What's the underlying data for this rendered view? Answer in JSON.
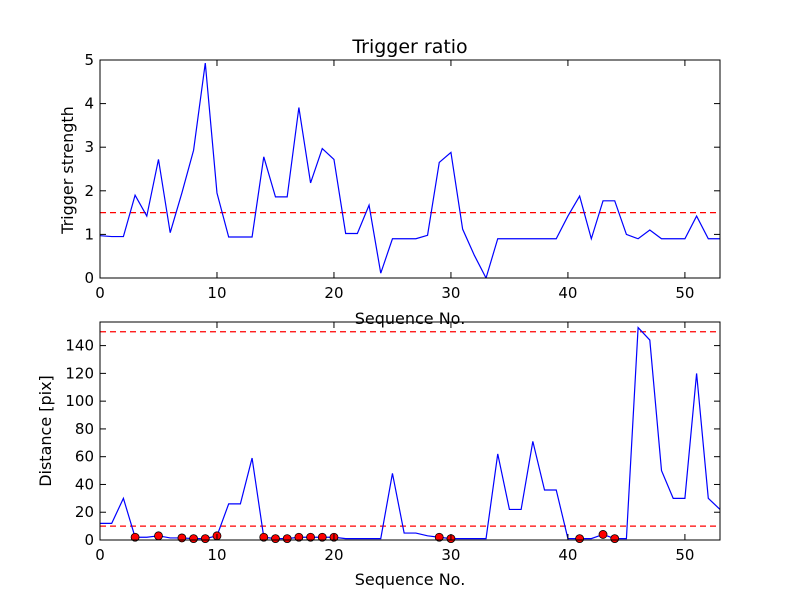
{
  "chart_data": [
    {
      "type": "line",
      "title": "Trigger ratio",
      "xlabel": "Sequence No.",
      "ylabel": "Trigger strength",
      "xlim": [
        0,
        53
      ],
      "ylim": [
        0,
        5
      ],
      "xticks": [
        0,
        10,
        20,
        30,
        40,
        50
      ],
      "yticks": [
        0,
        1,
        2,
        3,
        4,
        5
      ],
      "grid": false,
      "series": [
        {
          "color": "#0000ff",
          "x": [
            0,
            1,
            2,
            3,
            4,
            5,
            6,
            7,
            8,
            9,
            10,
            11,
            12,
            13,
            14,
            15,
            16,
            17,
            18,
            19,
            20,
            21,
            22,
            23,
            24,
            25,
            26,
            27,
            28,
            29,
            30,
            31,
            32,
            33,
            34,
            35,
            36,
            37,
            38,
            39,
            40,
            41,
            42,
            43,
            44,
            45,
            46,
            47,
            48,
            49,
            50,
            51,
            52,
            53
          ],
          "y": [
            0.97,
            0.95,
            0.95,
            1.9,
            1.42,
            2.72,
            1.04,
            1.95,
            2.93,
            4.93,
            1.95,
            0.94,
            0.94,
            0.94,
            2.78,
            1.86,
            1.86,
            3.91,
            2.18,
            2.97,
            2.72,
            1.02,
            1.02,
            1.67,
            0.11,
            0.9,
            0.9,
            0.9,
            0.98,
            2.65,
            2.88,
            1.12,
            0.52,
            0.0,
            0.9,
            0.9,
            0.9,
            0.9,
            0.9,
            0.9,
            1.42,
            1.88,
            0.9,
            1.77,
            1.77,
            1.0,
            0.9,
            1.1,
            0.9,
            0.9,
            0.9,
            1.42,
            0.9,
            0.9
          ]
        }
      ],
      "threshold": {
        "value": 1.5,
        "color": "#ff0000",
        "style": "dashed"
      }
    },
    {
      "type": "line",
      "title": "",
      "xlabel": "Sequence No.",
      "ylabel": "Distance [pix]",
      "xlim": [
        0,
        53
      ],
      "ylim": [
        0,
        157
      ],
      "xticks": [
        0,
        10,
        20,
        30,
        40,
        50
      ],
      "yticks": [
        0,
        20,
        40,
        60,
        80,
        100,
        120,
        140
      ],
      "grid": false,
      "series": [
        {
          "color": "#0000ff",
          "x": [
            0,
            1,
            2,
            3,
            4,
            5,
            6,
            7,
            8,
            9,
            10,
            11,
            12,
            13,
            14,
            15,
            16,
            17,
            18,
            19,
            20,
            21,
            22,
            23,
            24,
            25,
            26,
            27,
            28,
            29,
            30,
            31,
            32,
            33,
            34,
            35,
            36,
            37,
            38,
            39,
            40,
            41,
            42,
            43,
            44,
            45,
            46,
            47,
            48,
            49,
            50,
            51,
            52,
            53
          ],
          "y": [
            12,
            12,
            30,
            2,
            2,
            3,
            1.5,
            1.5,
            1,
            1,
            3,
            26,
            26,
            59,
            2,
            1,
            1,
            2,
            2,
            2,
            2,
            1,
            1,
            1,
            1,
            48,
            5,
            5,
            3,
            2,
            1,
            1,
            1,
            1,
            62,
            22,
            22,
            71,
            36,
            36,
            1,
            1,
            1,
            4,
            1,
            1,
            153,
            144,
            50,
            30,
            30,
            120,
            30,
            22
          ]
        }
      ],
      "markers": {
        "color": "#ff0000",
        "x": [
          3,
          5,
          7,
          8,
          9,
          10,
          14,
          15,
          16,
          17,
          18,
          19,
          20,
          29,
          30,
          41,
          43,
          44
        ],
        "y": [
          2,
          3,
          1.5,
          1,
          1,
          3,
          2,
          1,
          1,
          2,
          2,
          2,
          2,
          2,
          1,
          1,
          4,
          1
        ]
      },
      "thresholds": [
        {
          "value": 150,
          "color": "#ff0000",
          "style": "dashed"
        },
        {
          "value": 10,
          "color": "#ff0000",
          "style": "dashed"
        }
      ]
    }
  ]
}
